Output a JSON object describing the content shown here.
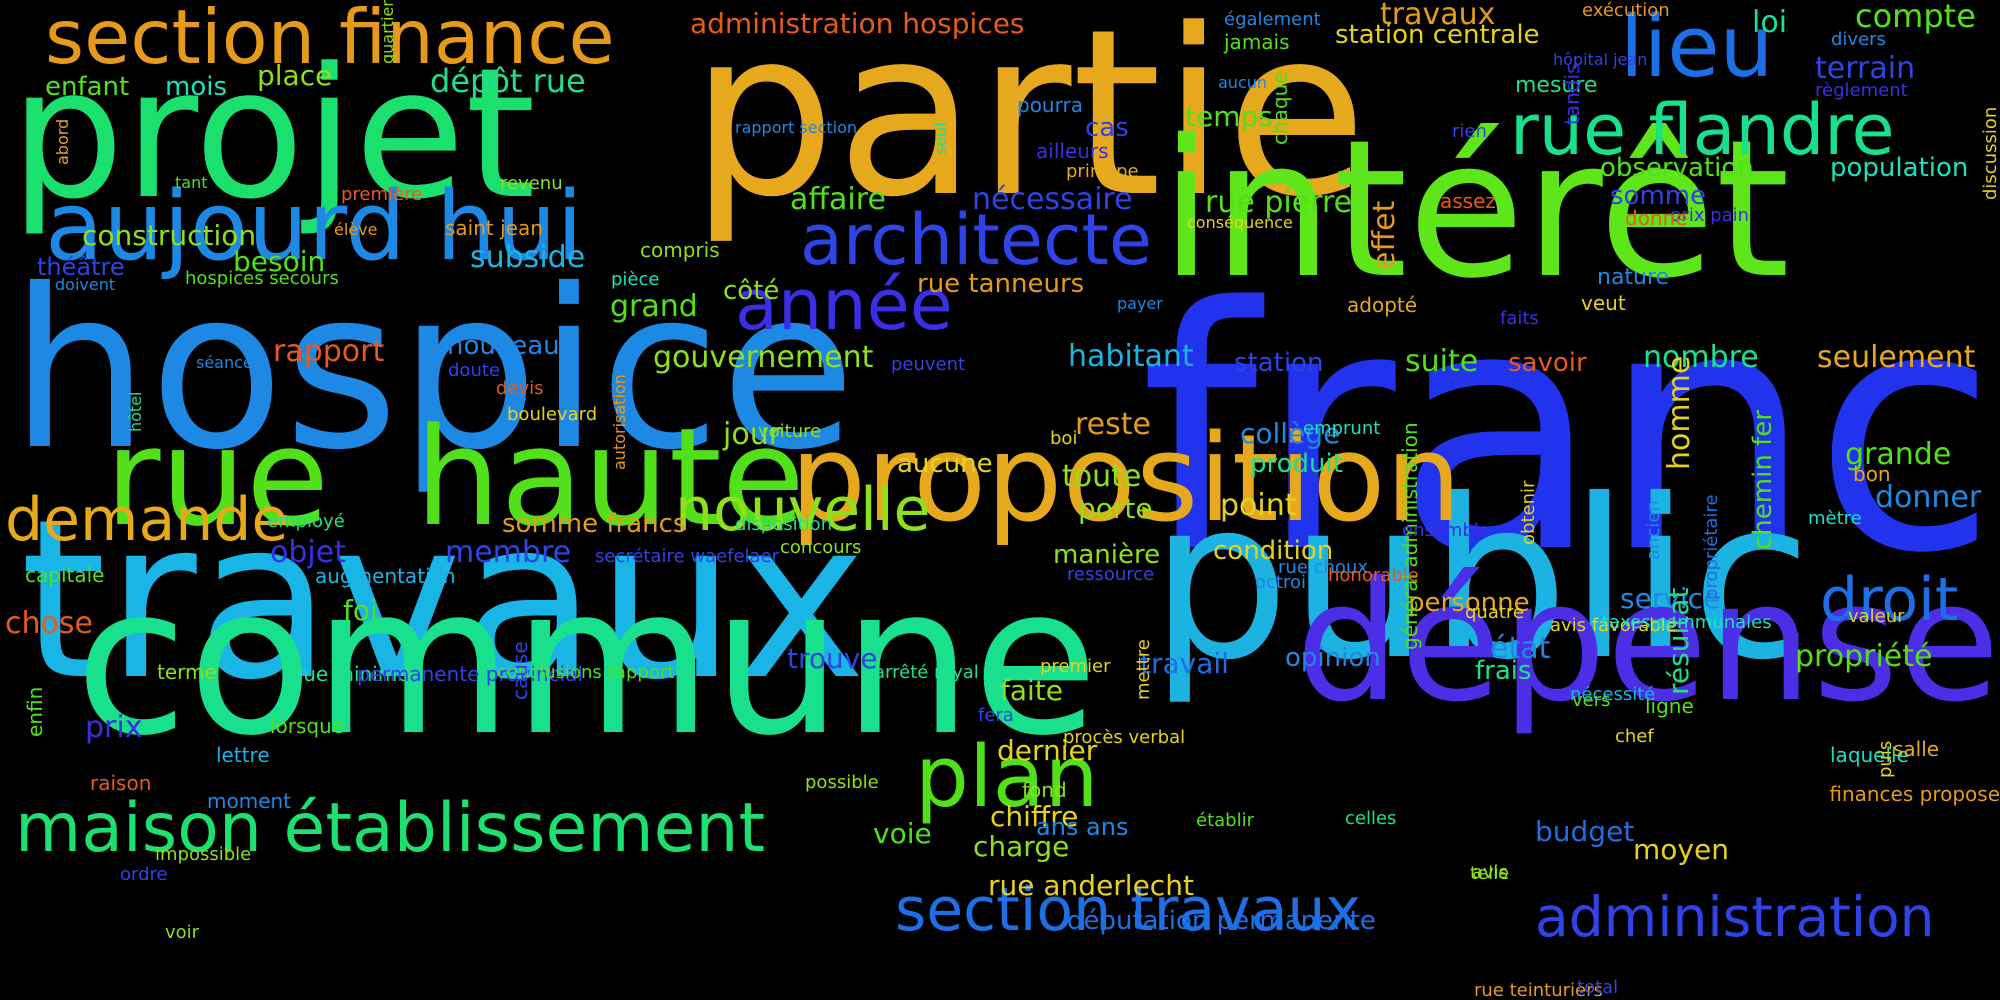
{
  "background_color": "#000000",
  "words": [
    {
      "text": "franc",
      "color": "#2233EE"
    },
    {
      "text": "hospice",
      "color": "#1E88E5"
    },
    {
      "text": "travaux",
      "color": "#19B5E6"
    },
    {
      "text": "partie",
      "color": "#E6A81C"
    },
    {
      "text": "intérêt",
      "color": "#5EE61A"
    },
    {
      "text": "public",
      "color": "#1CB3E3"
    },
    {
      "text": "commune",
      "color": "#19E08C"
    },
    {
      "text": "projet",
      "color": "#1CE06E"
    },
    {
      "text": "haute",
      "color": "#52E01A"
    },
    {
      "text": "rue",
      "color": "#52E01A"
    },
    {
      "text": "dépense",
      "color": "#4B2EE6"
    },
    {
      "text": "proposition",
      "color": "#E6A81C"
    },
    {
      "text": "aujourd hui",
      "color": "#1E88E5"
    },
    {
      "text": "section finance",
      "color": "#E69A1C"
    },
    {
      "text": "rue flandre",
      "color": "#19E08C"
    },
    {
      "text": "lieu",
      "color": "#1E6FE6"
    },
    {
      "text": "architecte",
      "color": "#2E44E6"
    },
    {
      "text": "année",
      "color": "#3A2EE6"
    },
    {
      "text": "maison établissement",
      "color": "#1EE06E"
    },
    {
      "text": "plan",
      "color": "#52E01A"
    },
    {
      "text": "section travaux",
      "color": "#1E6FE6"
    },
    {
      "text": "administration",
      "color": "#2E44E6"
    },
    {
      "text": "demande",
      "color": "#E6A81C"
    },
    {
      "text": "nouvelle",
      "color": "#8EE01A"
    },
    {
      "text": "droit",
      "color": "#1E6FE6"
    },
    {
      "text": "administration hospices",
      "color": "#E65A1C"
    },
    {
      "text": "dépôt rue",
      "color": "#1EE08C"
    },
    {
      "text": "travaux",
      "color": "#E69A1C"
    },
    {
      "text": "station centrale",
      "color": "#E6D21C"
    },
    {
      "text": "compte",
      "color": "#52E01A"
    },
    {
      "text": "loi",
      "color": "#1EE08C"
    },
    {
      "text": "terrain",
      "color": "#2E44E6"
    },
    {
      "text": "enfant",
      "color": "#52E01A"
    },
    {
      "text": "mois",
      "color": "#1CE0C0"
    },
    {
      "text": "place",
      "color": "#8EE01A"
    },
    {
      "text": "mesure",
      "color": "#1EE08C"
    },
    {
      "text": "observation",
      "color": "#52E01A"
    },
    {
      "text": "population",
      "color": "#1CE0C0"
    },
    {
      "text": "temps",
      "color": "#52E01A"
    },
    {
      "text": "cas",
      "color": "#2E44E6"
    },
    {
      "text": "affaire",
      "color": "#52E01A"
    },
    {
      "text": "nécessaire",
      "color": "#2E44E6"
    },
    {
      "text": "rue pierre",
      "color": "#52E01A"
    },
    {
      "text": "somme",
      "color": "#2E44E6"
    },
    {
      "text": "construction",
      "color": "#8EE01A"
    },
    {
      "text": "besoin",
      "color": "#52E01A"
    },
    {
      "text": "subside",
      "color": "#19B5E6"
    },
    {
      "text": "théâtre",
      "color": "#2E44E6"
    },
    {
      "text": "grand",
      "color": "#52E01A"
    },
    {
      "text": "côté",
      "color": "#8EE01A"
    },
    {
      "text": "rue tanneurs",
      "color": "#E69A1C"
    },
    {
      "text": "rapport",
      "color": "#E65A1C"
    },
    {
      "text": "nouveau",
      "color": "#1E88E5"
    },
    {
      "text": "gouvernement",
      "color": "#8EE01A"
    },
    {
      "text": "habitant",
      "color": "#1CB3E3"
    },
    {
      "text": "station",
      "color": "#2E44E6"
    },
    {
      "text": "effet",
      "color": "#E69A1C"
    },
    {
      "text": "suite",
      "color": "#52E01A"
    },
    {
      "text": "savoir",
      "color": "#E65A1C"
    },
    {
      "text": "nombre",
      "color": "#1EE08C"
    },
    {
      "text": "seulement",
      "color": "#E6A81C"
    },
    {
      "text": "reste",
      "color": "#E69A1C"
    },
    {
      "text": "collège",
      "color": "#1E88E5"
    },
    {
      "text": "jour",
      "color": "#8EE01A"
    },
    {
      "text": "produit",
      "color": "#1EE08C"
    },
    {
      "text": "toute",
      "color": "#8EE01A"
    },
    {
      "text": "aucune",
      "color": "#E6D21C"
    },
    {
      "text": "grande",
      "color": "#52E01A"
    },
    {
      "text": "donner",
      "color": "#1E88E5"
    },
    {
      "text": "homme",
      "color": "#E6D21C"
    },
    {
      "text": "point",
      "color": "#E6D21C"
    },
    {
      "text": "porte",
      "color": "#8EE01A"
    },
    {
      "text": "objet",
      "color": "#3A2EE6"
    },
    {
      "text": "membre",
      "color": "#2E44E6"
    },
    {
      "text": "somme francs",
      "color": "#E69A1C"
    },
    {
      "text": "manière",
      "color": "#8EE01A"
    },
    {
      "text": "condition",
      "color": "#E6D21C"
    },
    {
      "text": "chose",
      "color": "#E65A1C"
    },
    {
      "text": "foi",
      "color": "#52E01A"
    },
    {
      "text": "personne",
      "color": "#E6A81C"
    },
    {
      "text": "service",
      "color": "#1E88E5"
    },
    {
      "text": "état",
      "color": "#1E88E5"
    },
    {
      "text": "frais",
      "color": "#1EE08C"
    },
    {
      "text": "propriété",
      "color": "#52E01A"
    },
    {
      "text": "travail",
      "color": "#1E6FE6"
    },
    {
      "text": "opinion",
      "color": "#1E88E5"
    },
    {
      "text": "trouve",
      "color": "#2E44E6"
    },
    {
      "text": "faite",
      "color": "#8EE01A"
    },
    {
      "text": "prix",
      "color": "#3A2EE6"
    },
    {
      "text": "dernier",
      "color": "#E6D21C"
    },
    {
      "text": "chiffre",
      "color": "#E6D21C"
    },
    {
      "text": "voie",
      "color": "#52E01A"
    },
    {
      "text": "ans ans",
      "color": "#1E88E5"
    },
    {
      "text": "charge",
      "color": "#8EE01A"
    },
    {
      "text": "moyen",
      "color": "#E6D21C"
    },
    {
      "text": "rue anderlecht",
      "color": "#E6D21C"
    },
    {
      "text": "députation permanente",
      "color": "#1E6FE6"
    },
    {
      "text": "budget",
      "color": "#1E6FE6"
    },
    {
      "text": "résultat",
      "color": "#1EE08C"
    },
    {
      "text": "lorsque",
      "color": "#52E01A"
    },
    {
      "text": "lettre",
      "color": "#1CB3E3"
    },
    {
      "text": "raison",
      "color": "#E65A1C"
    },
    {
      "text": "moment",
      "color": "#1E88E5"
    },
    {
      "text": "terme",
      "color": "#8EE01A"
    },
    {
      "text": "rue minimes",
      "color": "#1EE08C"
    },
    {
      "text": "permanente provincial",
      "color": "#2E44E6"
    },
    {
      "text": "conclusions rapport",
      "color": "#52E01A"
    },
    {
      "text": "capitale",
      "color": "#52E01A"
    },
    {
      "text": "augmentation",
      "color": "#1CB3E3"
    },
    {
      "text": "employé",
      "color": "#1EE08C"
    },
    {
      "text": "secrétaire waefelaer",
      "color": "#2E44E6"
    },
    {
      "text": "concours",
      "color": "#8EE01A"
    },
    {
      "text": "disposition",
      "color": "#1EE08C"
    },
    {
      "text": "enfin",
      "color": "#52E01A"
    },
    {
      "text": "ordre",
      "color": "#2E44E6"
    },
    {
      "text": "impossible",
      "color": "#8EE01A"
    },
    {
      "text": "voir",
      "color": "#8EE01A"
    },
    {
      "text": "cause",
      "color": "#2E44E6"
    },
    {
      "text": "arrêté royal",
      "color": "#1EE08C"
    },
    {
      "text": "premier",
      "color": "#E6D21C"
    },
    {
      "text": "fera",
      "color": "#2E44E6"
    },
    {
      "text": "procès verbal",
      "color": "#E6D21C"
    },
    {
      "text": "mettre",
      "color": "#E6D21C"
    },
    {
      "text": "possible",
      "color": "#8EE01A"
    },
    {
      "text": "fond",
      "color": "#8EE01A"
    },
    {
      "text": "établir",
      "color": "#52E01A"
    },
    {
      "text": "général administration",
      "color": "#52E01A"
    },
    {
      "text": "celles",
      "color": "#1EE08C"
    },
    {
      "text": "vers",
      "color": "#52E01A"
    },
    {
      "text": "avis",
      "color": "#8EE01A"
    },
    {
      "text": "ligne",
      "color": "#52E01A"
    },
    {
      "text": "nécessité",
      "color": "#1CB3E3"
    },
    {
      "text": "telle",
      "color": "#8EE01A"
    },
    {
      "text": "chef",
      "color": "#E6D21C"
    },
    {
      "text": "laquelle",
      "color": "#1CE0C0"
    },
    {
      "text": "salle",
      "color": "#E6A81C"
    },
    {
      "text": "finances propose",
      "color": "#E69A1C"
    },
    {
      "text": "puis",
      "color": "#E6D21C"
    },
    {
      "text": "rue teinturiers",
      "color": "#E69A1C"
    },
    {
      "text": "total",
      "color": "#2E44E6"
    },
    {
      "text": "avis favorable",
      "color": "#E6D21C"
    },
    {
      "text": "taxes communales",
      "color": "#1CE0C0"
    },
    {
      "text": "quatre",
      "color": "#E6D21C"
    },
    {
      "text": "valeur",
      "color": "#E6D21C"
    },
    {
      "text": "propriétaire",
      "color": "#1E6FE6"
    },
    {
      "text": "chemin fer",
      "color": "#52E01A"
    },
    {
      "text": "ancien",
      "color": "#1E88E5"
    },
    {
      "text": "obtenir",
      "color": "#E6D21C"
    },
    {
      "text": "mètre",
      "color": "#1CE0C0"
    },
    {
      "text": "bon",
      "color": "#E6A81C"
    },
    {
      "text": "ensemble",
      "color": "#3A2EE6"
    },
    {
      "text": "rue choux",
      "color": "#1E88E5"
    },
    {
      "text": "octroi",
      "color": "#1E88E5"
    },
    {
      "text": "honorable",
      "color": "#E65A1C"
    },
    {
      "text": "ressource",
      "color": "#2E44E6"
    },
    {
      "text": "boi",
      "color": "#E6D21C"
    },
    {
      "text": "emprunt",
      "color": "#1CE0C0"
    },
    {
      "text": "faits",
      "color": "#3A2EE6"
    },
    {
      "text": "veut",
      "color": "#E6D21C"
    },
    {
      "text": "nature",
      "color": "#1E88E5"
    },
    {
      "text": "adopté",
      "color": "#E6A81C"
    },
    {
      "text": "tandis",
      "color": "#3A2EE6"
    },
    {
      "text": "règlement",
      "color": "#3A2EE6"
    },
    {
      "text": "divers",
      "color": "#1E88E5"
    },
    {
      "text": "prix pain",
      "color": "#3A2EE6"
    },
    {
      "text": "discussion",
      "color": "#E6D21C"
    },
    {
      "text": "donne",
      "color": "#E65A1C"
    },
    {
      "text": "assez",
      "color": "#E65A1C"
    },
    {
      "text": "conséquence",
      "color": "#E6D21C"
    },
    {
      "text": "rien",
      "color": "#2E44E6"
    },
    {
      "text": "chaque",
      "color": "#52E01A"
    },
    {
      "text": "hôpital jean",
      "color": "#2E44E6"
    },
    {
      "text": "exécution",
      "color": "#E69A1C"
    },
    {
      "text": "jamais",
      "color": "#52E01A"
    },
    {
      "text": "également",
      "color": "#1E88E5"
    },
    {
      "text": "aucun",
      "color": "#1E88E5"
    },
    {
      "text": "pourra",
      "color": "#1E88E5"
    },
    {
      "text": "ailleurs",
      "color": "#3A2EE6"
    },
    {
      "text": "principe",
      "color": "#E6A81C"
    },
    {
      "text": "seul",
      "color": "#1EE08C"
    },
    {
      "text": "rapport section",
      "color": "#1E88E5"
    },
    {
      "text": "saint jean",
      "color": "#E69A1C"
    },
    {
      "text": "compris",
      "color": "#8EE01A"
    },
    {
      "text": "pièce",
      "color": "#1CE0C0"
    },
    {
      "text": "payer",
      "color": "#1E88E5"
    },
    {
      "text": "peuvent",
      "color": "#2E44E6"
    },
    {
      "text": "voiture",
      "color": "#8EE01A"
    },
    {
      "text": "autorisation",
      "color": "#E69A1C"
    },
    {
      "text": "devis",
      "color": "#E65A1C"
    },
    {
      "text": "doute",
      "color": "#2E44E6"
    },
    {
      "text": "boulevard",
      "color": "#E6D21C"
    },
    {
      "text": "séance",
      "color": "#1E88E5"
    },
    {
      "text": "hospices secours",
      "color": "#52E01A"
    },
    {
      "text": "doivent",
      "color": "#1E88E5"
    },
    {
      "text": "élève",
      "color": "#E69A1C"
    },
    {
      "text": "première",
      "color": "#E65A1C"
    },
    {
      "text": "revenu",
      "color": "#8EE01A"
    },
    {
      "text": "tant",
      "color": "#52E01A"
    },
    {
      "text": "abord",
      "color": "#E6A81C"
    },
    {
      "text": "quartier",
      "color": "#8EE01A"
    },
    {
      "text": "hôtel",
      "color": "#1EE08C"
    }
  ]
}
